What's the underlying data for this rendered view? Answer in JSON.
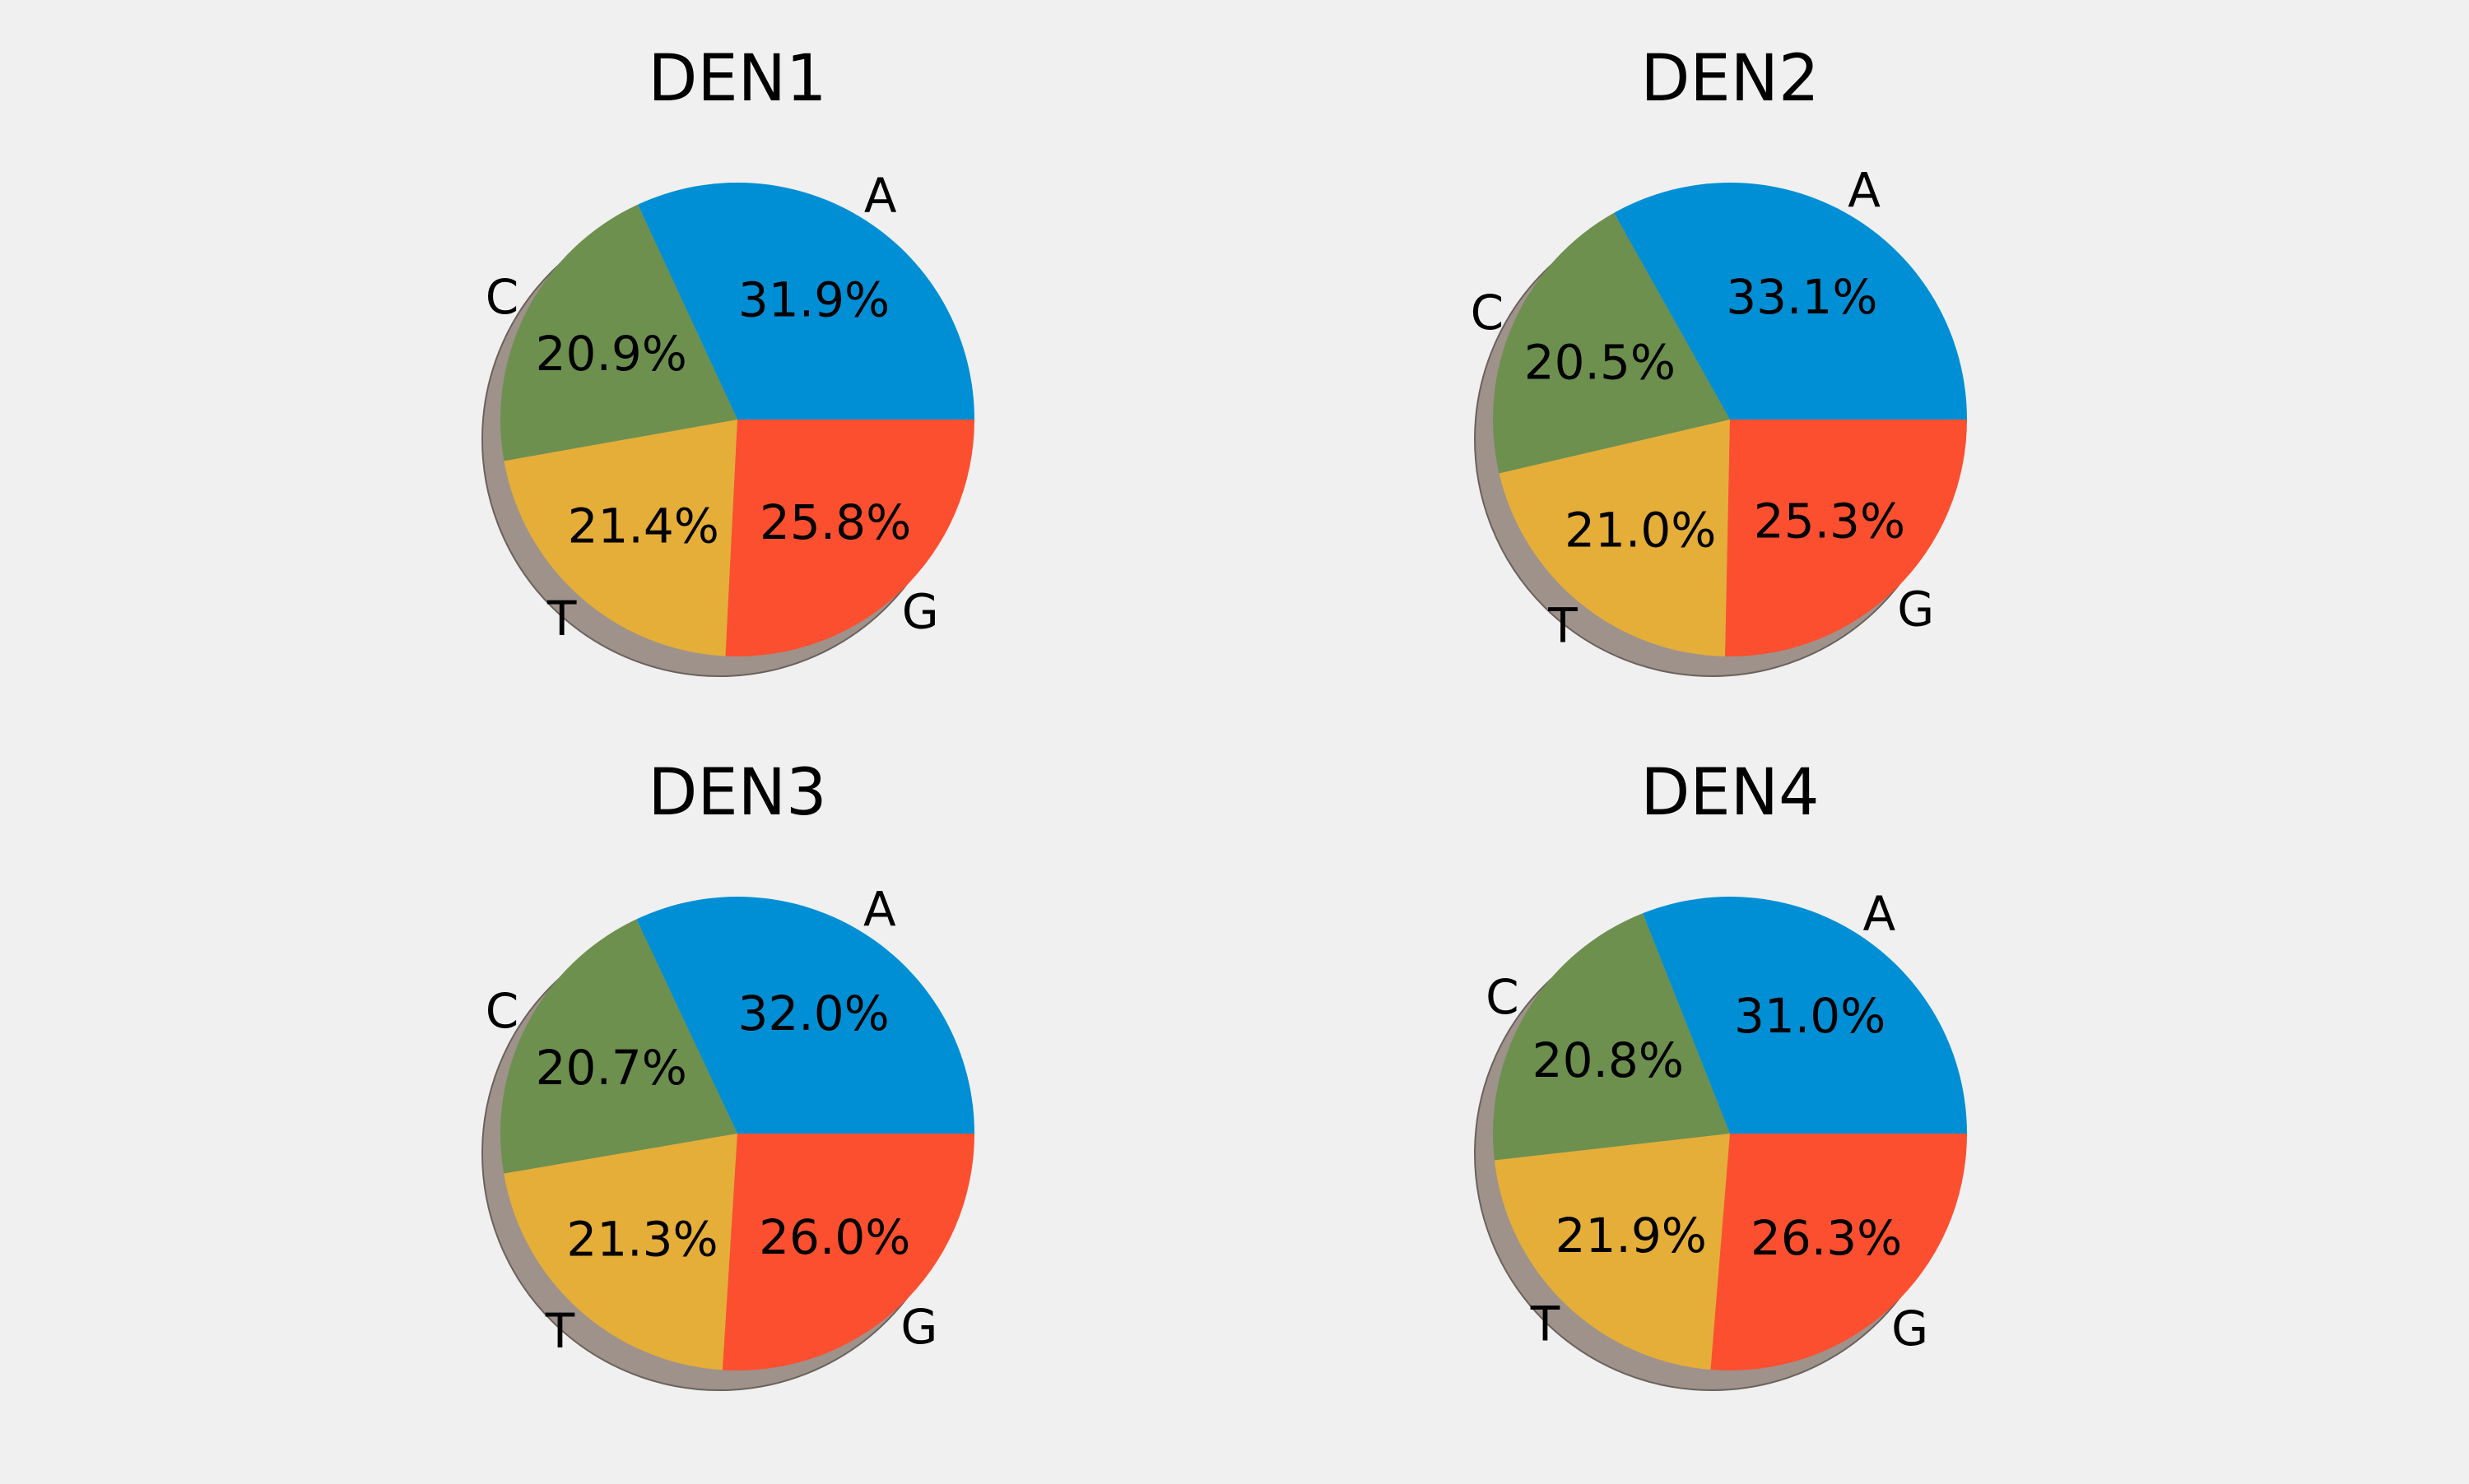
{
  "figure": {
    "background": "#f0f0f0"
  },
  "chart_data": [
    {
      "type": "pie",
      "title": "DEN1",
      "labels": [
        "A",
        "C",
        "T",
        "G"
      ],
      "values": [
        31.9,
        20.9,
        21.4,
        25.8
      ],
      "value_labels": [
        "31.9%",
        "20.9%",
        "21.4%",
        "25.8%"
      ],
      "colors": [
        "#008fd5",
        "#6d904f",
        "#e5ae38",
        "#fc4f30"
      ],
      "start_angle": 0,
      "direction": "counterclockwise-from-east-drawn-clockwise",
      "shadow": true
    },
    {
      "type": "pie",
      "title": "DEN2",
      "labels": [
        "A",
        "C",
        "T",
        "G"
      ],
      "values": [
        33.1,
        20.5,
        21.0,
        25.3
      ],
      "value_labels": [
        "33.1%",
        "20.5%",
        "21.0%",
        "25.3%"
      ],
      "colors": [
        "#008fd5",
        "#6d904f",
        "#e5ae38",
        "#fc4f30"
      ],
      "start_angle": 0,
      "direction": "counterclockwise-from-east-drawn-clockwise",
      "shadow": true
    },
    {
      "type": "pie",
      "title": "DEN3",
      "labels": [
        "A",
        "C",
        "T",
        "G"
      ],
      "values": [
        32.0,
        20.7,
        21.3,
        26.0
      ],
      "value_labels": [
        "32.0%",
        "20.7%",
        "21.3%",
        "26.0%"
      ],
      "colors": [
        "#008fd5",
        "#6d904f",
        "#e5ae38",
        "#fc4f30"
      ],
      "start_angle": 0,
      "direction": "counterclockwise-from-east-drawn-clockwise",
      "shadow": true
    },
    {
      "type": "pie",
      "title": "DEN4",
      "labels": [
        "A",
        "C",
        "T",
        "G"
      ],
      "values": [
        31.0,
        20.8,
        21.9,
        26.3
      ],
      "value_labels": [
        "31.0%",
        "20.8%",
        "21.9%",
        "26.3%"
      ],
      "colors": [
        "#008fd5",
        "#6d904f",
        "#e5ae38",
        "#fc4f30"
      ],
      "start_angle": 0,
      "direction": "counterclockwise-from-east-drawn-clockwise",
      "shadow": true
    }
  ]
}
